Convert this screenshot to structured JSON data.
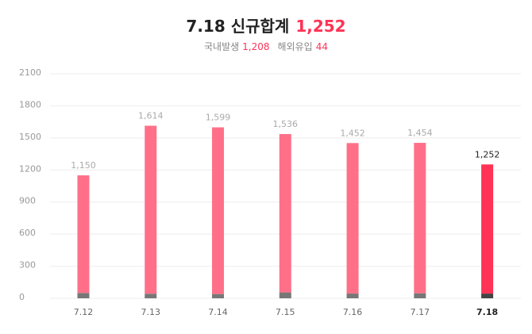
{
  "chart_data": {
    "type": "stacked-bar",
    "title": "7.18 신규합계",
    "categories": [
      "7.12",
      "7.13",
      "7.14",
      "7.15",
      "7.16",
      "7.17",
      "7.18"
    ],
    "total_labels": [
      "1,150",
      "1,614",
      "1,599",
      "1,536",
      "1,452",
      "1,454",
      "1,252"
    ],
    "series": [
      {
        "name": "국내발생",
        "color": "#ff7088",
        "highlight_color": "#ff3355",
        "values": [
          1100,
          1571,
          1559,
          1481,
          1408,
          1407,
          1208
        ],
        "value_labels": [
          null,
          null,
          null,
          null,
          null,
          null,
          "1,208"
        ]
      },
      {
        "name": "해외유입",
        "color": "#777777",
        "highlight_color": "#444444",
        "values": [
          50,
          43,
          40,
          55,
          44,
          47,
          44
        ]
      }
    ],
    "ylim": [
      0,
      2100
    ],
    "yticks": [
      0,
      300,
      600,
      900,
      1200,
      1500,
      1800,
      2100
    ],
    "grid": true
  }
}
